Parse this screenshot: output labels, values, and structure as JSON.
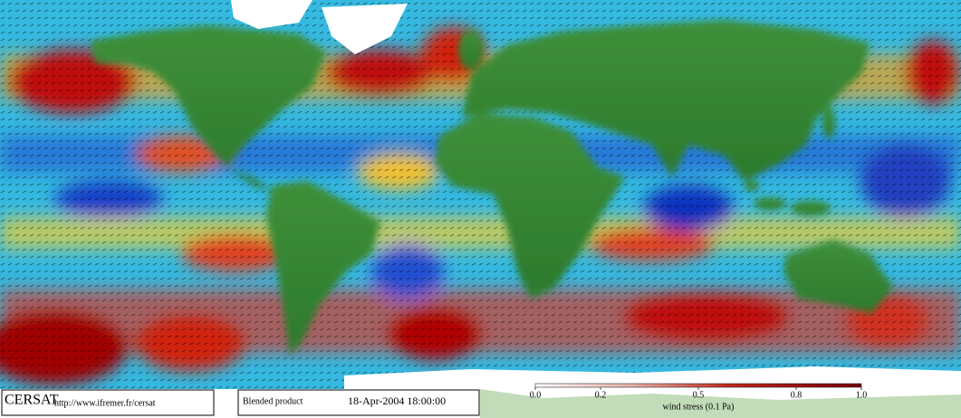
{
  "footer": {
    "logo": "CERSAT",
    "url": "http://www.ifremer.fr/cersat",
    "product": "Blended product",
    "date": "18-Apr-2004 18:00:00"
  },
  "colorbar": {
    "title": "wind stress (0.1 Pa)",
    "range": [
      0,
      1
    ],
    "ticks": [
      {
        "value": 0,
        "label": "0.0"
      },
      0.2,
      0.5,
      0.8,
      {
        "value": 1,
        "label": "1.0"
      }
    ]
  }
}
